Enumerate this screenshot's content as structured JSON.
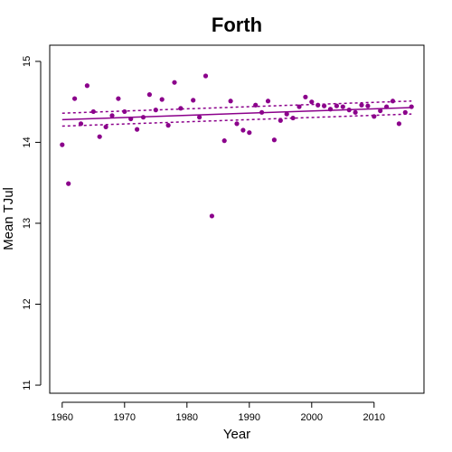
{
  "chart_data": {
    "type": "scatter",
    "title": "Forth",
    "xlabel": "Year",
    "ylabel": "Mean TJul",
    "xlim": [
      1958,
      2018
    ],
    "ylim": [
      10.9,
      15.2
    ],
    "xticks": [
      1960,
      1970,
      1980,
      1990,
      2000,
      2010
    ],
    "yticks": [
      11,
      12,
      13,
      14,
      15
    ],
    "color": "#8b008b",
    "points": [
      {
        "x": 1960,
        "y": 13.97
      },
      {
        "x": 1961,
        "y": 13.49
      },
      {
        "x": 1962,
        "y": 14.54
      },
      {
        "x": 1963,
        "y": 14.23
      },
      {
        "x": 1964,
        "y": 14.7
      },
      {
        "x": 1965,
        "y": 14.38
      },
      {
        "x": 1966,
        "y": 14.07
      },
      {
        "x": 1967,
        "y": 14.19
      },
      {
        "x": 1968,
        "y": 14.33
      },
      {
        "x": 1969,
        "y": 14.54
      },
      {
        "x": 1970,
        "y": 14.38
      },
      {
        "x": 1971,
        "y": 14.29
      },
      {
        "x": 1972,
        "y": 14.16
      },
      {
        "x": 1973,
        "y": 14.31
      },
      {
        "x": 1974,
        "y": 14.59
      },
      {
        "x": 1975,
        "y": 14.4
      },
      {
        "x": 1976,
        "y": 14.53
      },
      {
        "x": 1977,
        "y": 14.21
      },
      {
        "x": 1978,
        "y": 14.74
      },
      {
        "x": 1979,
        "y": 14.42
      },
      {
        "x": 1981,
        "y": 14.52
      },
      {
        "x": 1982,
        "y": 14.31
      },
      {
        "x": 1983,
        "y": 14.82
      },
      {
        "x": 1984,
        "y": 13.09
      },
      {
        "x": 1986,
        "y": 14.02
      },
      {
        "x": 1987,
        "y": 14.51
      },
      {
        "x": 1988,
        "y": 14.23
      },
      {
        "x": 1989,
        "y": 14.15
      },
      {
        "x": 1990,
        "y": 14.12
      },
      {
        "x": 1991,
        "y": 14.46
      },
      {
        "x": 1992,
        "y": 14.37
      },
      {
        "x": 1993,
        "y": 14.51
      },
      {
        "x": 1994,
        "y": 14.03
      },
      {
        "x": 1995,
        "y": 14.27
      },
      {
        "x": 1996,
        "y": 14.35
      },
      {
        "x": 1997,
        "y": 14.3
      },
      {
        "x": 1998,
        "y": 14.44
      },
      {
        "x": 1999,
        "y": 14.56
      },
      {
        "x": 2000,
        "y": 14.5
      },
      {
        "x": 2001,
        "y": 14.46
      },
      {
        "x": 2002,
        "y": 14.45
      },
      {
        "x": 2003,
        "y": 14.41
      },
      {
        "x": 2004,
        "y": 14.45
      },
      {
        "x": 2005,
        "y": 14.44
      },
      {
        "x": 2006,
        "y": 14.4
      },
      {
        "x": 2007,
        "y": 14.37
      },
      {
        "x": 2008,
        "y": 14.46
      },
      {
        "x": 2009,
        "y": 14.45
      },
      {
        "x": 2010,
        "y": 14.32
      },
      {
        "x": 2011,
        "y": 14.39
      },
      {
        "x": 2012,
        "y": 14.44
      },
      {
        "x": 2013,
        "y": 14.51
      },
      {
        "x": 2014,
        "y": 14.23
      },
      {
        "x": 2015,
        "y": 14.37
      },
      {
        "x": 2016,
        "y": 14.44
      }
    ],
    "trend": {
      "x": [
        1960,
        2016
      ],
      "y": [
        14.28,
        14.43
      ]
    },
    "ci_upper": {
      "x": [
        1960,
        2016
      ],
      "y": [
        14.36,
        14.51
      ]
    },
    "ci_lower": {
      "x": [
        1960,
        2016
      ],
      "y": [
        14.2,
        14.35
      ]
    },
    "grid": false,
    "legend": "none"
  }
}
